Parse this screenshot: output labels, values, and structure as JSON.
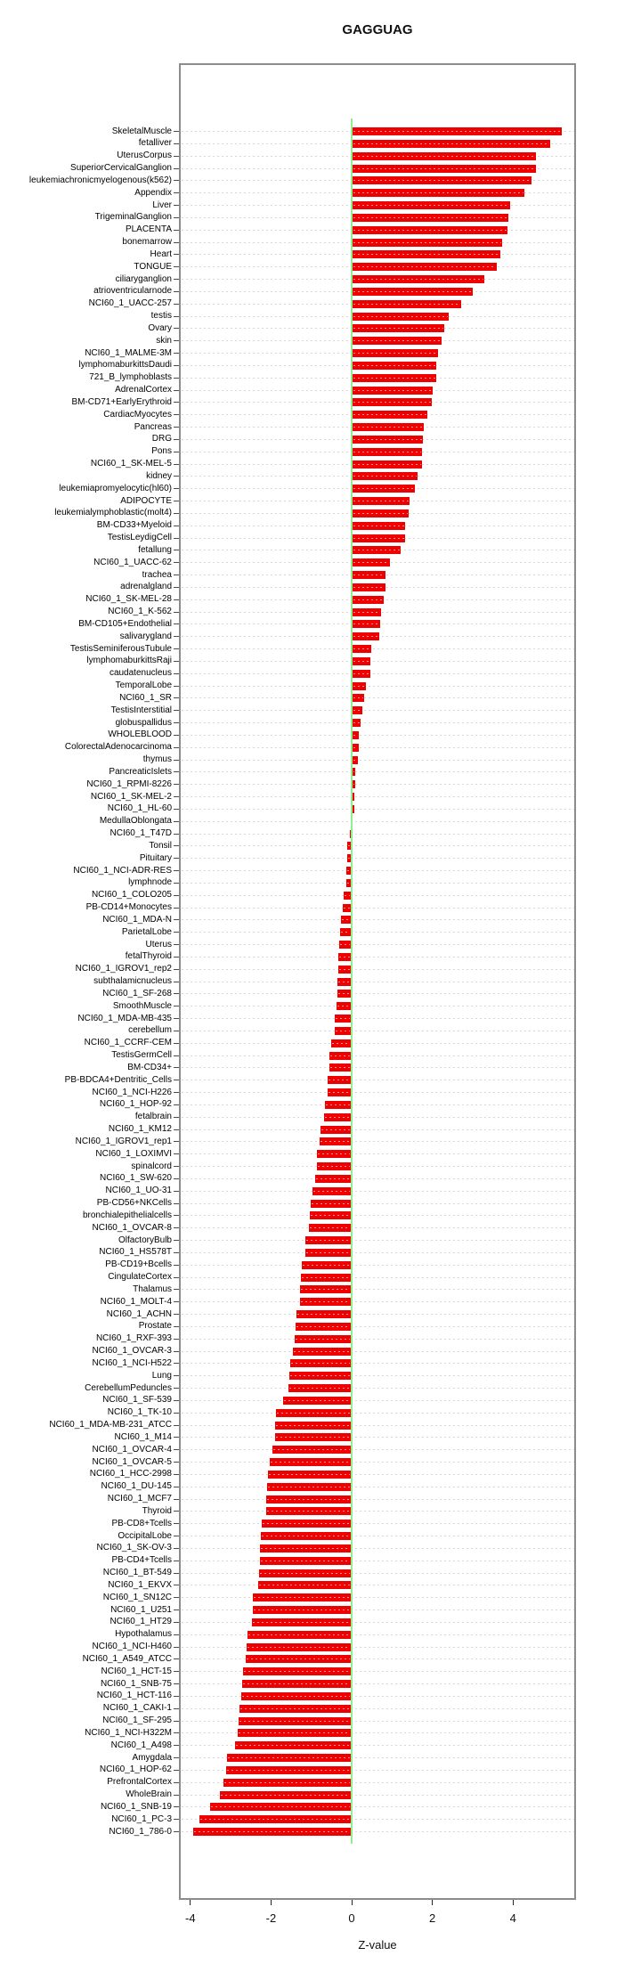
{
  "title": "GAGGUAG",
  "chart_data": {
    "type": "bar",
    "orientation": "horizontal",
    "title": "GAGGUAG",
    "xlabel": "Z-value",
    "xlim": [
      -4.3,
      5.56
    ],
    "xticks": [
      -4,
      -2,
      0,
      2,
      4
    ],
    "grid": "dashed horizontal line per category",
    "legend": "none",
    "bar_color": "#ee0000",
    "zero_line_color": "#90ee90",
    "grid_color": "#d6d6d6",
    "categories": [
      "SkeletalMuscle",
      "fetalliver",
      "UterusCorpus",
      "SuperiorCervicalGanglion",
      "leukemiachronicmyelogenous(k562)",
      "Appendix",
      "Liver",
      "TrigeminalGanglion",
      "PLACENTA",
      "bonemarrow",
      "Heart",
      "TONGUE",
      "ciliaryganglion",
      "atrioventricularnode",
      "NCI60_1_UACC-257",
      "testis",
      "Ovary",
      "skin",
      "NCI60_1_MALME-3M",
      "lymphomaburkittsDaudi",
      "721_B_lymphoblasts",
      "AdrenalCortex",
      "BM-CD71+EarlyErythroid",
      "CardiacMyocytes",
      "Pancreas",
      "DRG",
      "Pons",
      "NCI60_1_SK-MEL-5",
      "kidney",
      "leukemiapromyelocytic(hl60)",
      "ADIPOCYTE",
      "leukemialymphoblastic(molt4)",
      "BM-CD33+Myeloid",
      "TestisLeydigCell",
      "fetallung",
      "NCI60_1_UACC-62",
      "trachea",
      "adrenalgland",
      "NCI60_1_SK-MEL-28",
      "NCI60_1_K-562",
      "BM-CD105+Endothelial",
      "salivarygland",
      "TestisSeminiferousTubule",
      "lymphomaburkittsRaji",
      "caudatenucleus",
      "TemporalLobe",
      "NCI60_1_SR",
      "TestisInterstitial",
      "globuspallidus",
      "WHOLEBLOOD",
      "ColorectalAdenocarcinoma",
      "thymus",
      "PancreaticIslets",
      "NCI60_1_RPMI-8226",
      "NCI60_1_SK-MEL-2",
      "NCI60_1_HL-60",
      "MedullaOblongata",
      "NCI60_1_T47D",
      "Tonsil",
      "Pituitary",
      "NCI60_1_NCI-ADR-RES",
      "lymphnode",
      "NCI60_1_COLO205",
      "PB-CD14+Monocytes",
      "NCI60_1_MDA-N",
      "ParietalLobe",
      "Uterus",
      "fetalThyroid",
      "NCI60_1_IGROV1_rep2",
      "subthalamicnucleus",
      "NCI60_1_SF-268",
      "SmoothMuscle",
      "NCI60_1_MDA-MB-435",
      "cerebellum",
      "NCI60_1_CCRF-CEM",
      "TestisGermCell",
      "BM-CD34+",
      "PB-BDCA4+Dentritic_Cells",
      "NCI60_1_NCI-H226",
      "NCI60_1_HOP-92",
      "fetalbrain",
      "NCI60_1_KM12",
      "NCI60_1_IGROV1_rep1",
      "NCI60_1_LOXIMVI",
      "spinalcord",
      "NCI60_1_SW-620",
      "NCI60_1_UO-31",
      "PB-CD56+NKCells",
      "bronchialepithelialcells",
      "NCI60_1_OVCAR-8",
      "OlfactoryBulb",
      "NCI60_1_HS578T",
      "PB-CD19+Bcells",
      "CingulateCortex",
      "Thalamus",
      "NCI60_1_MOLT-4",
      "NCI60_1_ACHN",
      "Prostate",
      "NCI60_1_RXF-393",
      "NCI60_1_OVCAR-3",
      "NCI60_1_NCI-H522",
      "Lung",
      "CerebellumPeduncles",
      "NCI60_1_SF-539",
      "NCI60_1_TK-10",
      "NCI60_1_MDA-MB-231_ATCC",
      "NCI60_1_M14",
      "NCI60_1_OVCAR-4",
      "NCI60_1_OVCAR-5",
      "NCI60_1_HCC-2998",
      "NCI60_1_DU-145",
      "NCI60_1_MCF7",
      "Thyroid",
      "PB-CD8+Tcells",
      "OccipitalLobe",
      "NCI60_1_SK-OV-3",
      "PB-CD4+Tcells",
      "NCI60_1_BT-549",
      "NCI60_1_EKVX",
      "NCI60_1_SN12C",
      "NCI60_1_U251",
      "NCI60_1_HT29",
      "Hypothalamus",
      "NCI60_1_NCI-H460",
      "NCI60_1_A549_ATCC",
      "NCI60_1_HCT-15",
      "NCI60_1_SNB-75",
      "NCI60_1_HCT-116",
      "NCI60_1_CAKI-1",
      "NCI60_1_SF-295",
      "NCI60_1_NCI-H322M",
      "NCI60_1_A498",
      "Amygdala",
      "NCI60_1_HOP-62",
      "PrefrontalCortex",
      "WholeBrain",
      "NCI60_1_SNB-19",
      "NCI60_1_PC-3",
      "NCI60_1_786-0"
    ],
    "values": [
      5.19,
      4.91,
      4.55,
      4.54,
      4.43,
      4.27,
      3.9,
      3.87,
      3.85,
      3.7,
      3.66,
      3.58,
      3.26,
      2.97,
      2.7,
      2.38,
      2.28,
      2.2,
      2.12,
      2.08,
      2.07,
      1.99,
      1.96,
      1.86,
      1.77,
      1.74,
      1.72,
      1.71,
      1.62,
      1.55,
      1.42,
      1.38,
      1.31,
      1.3,
      1.19,
      0.93,
      0.82,
      0.81,
      0.78,
      0.71,
      0.68,
      0.67,
      0.47,
      0.45,
      0.44,
      0.34,
      0.29,
      0.25,
      0.2,
      0.15,
      0.15,
      0.13,
      0.07,
      0.06,
      0.05,
      0.04,
      0.01,
      -0.02,
      -0.1,
      -0.1,
      -0.11,
      -0.12,
      -0.18,
      -0.19,
      -0.25,
      -0.26,
      -0.29,
      -0.3,
      -0.32,
      -0.33,
      -0.34,
      -0.35,
      -0.39,
      -0.4,
      -0.49,
      -0.53,
      -0.54,
      -0.58,
      -0.58,
      -0.65,
      -0.67,
      -0.76,
      -0.78,
      -0.84,
      -0.85,
      -0.89,
      -0.96,
      -1.0,
      -1.02,
      -1.03,
      -1.12,
      -1.12,
      -1.22,
      -1.24,
      -1.25,
      -1.26,
      -1.34,
      -1.38,
      -1.39,
      -1.43,
      -1.5,
      -1.52,
      -1.54,
      -1.67,
      -1.85,
      -1.87,
      -1.88,
      -1.95,
      -2.0,
      -2.05,
      -2.07,
      -2.09,
      -2.1,
      -2.2,
      -2.22,
      -2.25,
      -2.26,
      -2.28,
      -2.29,
      -2.42,
      -2.44,
      -2.45,
      -2.57,
      -2.58,
      -2.6,
      -2.67,
      -2.69,
      -2.71,
      -2.75,
      -2.78,
      -2.8,
      -2.87,
      -3.08,
      -3.09,
      -3.15,
      -3.25,
      -3.5,
      -3.75,
      -3.9
    ]
  }
}
